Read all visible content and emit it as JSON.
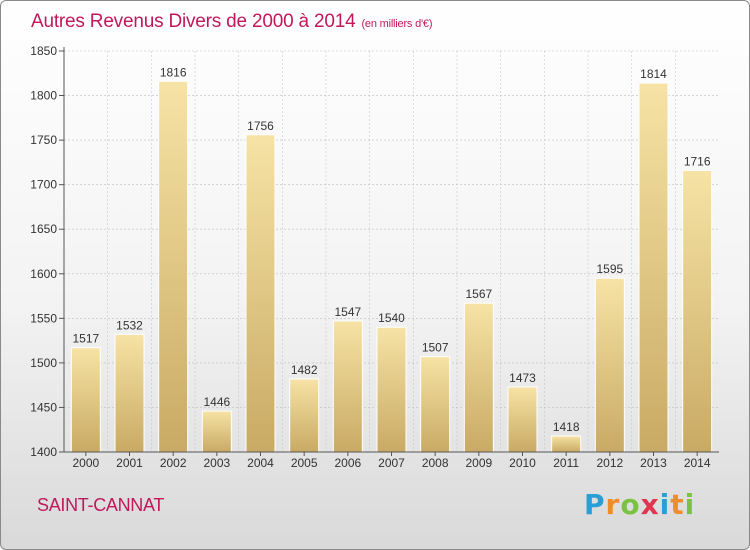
{
  "header": {
    "title": "Autres Revenus Divers de 2000 à 2014",
    "subtitle": "(en milliers d'€)"
  },
  "footer": {
    "place": "SAINT-CANNAT",
    "brand_letters": [
      "P",
      "r",
      "o",
      "x",
      "i",
      "t",
      "i"
    ],
    "brand_colors": [
      "#2a9fd6",
      "#f28c28",
      "#7cc242",
      "#e0344f",
      "#2a9fd6",
      "#f28c28",
      "#7cc242"
    ]
  },
  "colors": {
    "bar_light": "#f6e3a5",
    "bar_dark": "#c9aa64",
    "grid": "#bdbdbd",
    "text": "#333333",
    "accent": "#c2185b"
  },
  "chart_data": {
    "type": "bar",
    "title": "Autres Revenus Divers de 2000 à 2014",
    "subtitle": "(en milliers d'€)",
    "categories": [
      "2000",
      "2001",
      "2002",
      "2003",
      "2004",
      "2005",
      "2006",
      "2007",
      "2008",
      "2009",
      "2010",
      "2011",
      "2012",
      "2013",
      "2014"
    ],
    "values": [
      1517,
      1532,
      1816,
      1446,
      1756,
      1482,
      1547,
      1540,
      1507,
      1567,
      1473,
      1418,
      1595,
      1814,
      1716
    ],
    "ylim": [
      1400,
      1850
    ],
    "yticks": [
      1400,
      1450,
      1500,
      1550,
      1600,
      1650,
      1700,
      1750,
      1800,
      1850
    ],
    "grid": true,
    "xlabel": "",
    "ylabel": ""
  }
}
